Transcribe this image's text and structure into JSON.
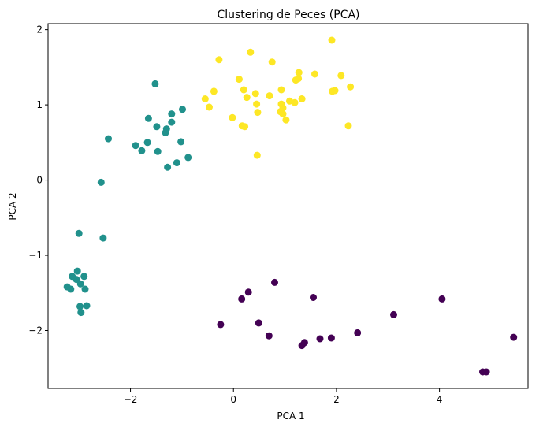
{
  "chart_data": {
    "type": "scatter",
    "title": "Clustering de Peces (PCA)",
    "xlabel": "PCA 1",
    "ylabel": "PCA 2",
    "xlim": [
      -3.6,
      5.72
    ],
    "ylim": [
      -2.77,
      2.08
    ],
    "xticks": [
      -2,
      0,
      2,
      4
    ],
    "xtick_labels": [
      "−2",
      "0",
      "2",
      "4"
    ],
    "yticks": [
      -2,
      -1,
      0,
      1,
      2
    ],
    "ytick_labels": [
      "−2",
      "−1",
      "0",
      "1",
      "2"
    ],
    "grid": false,
    "series": [
      {
        "color": "#440154",
        "points": [
          [
            -0.25,
            -1.92
          ],
          [
            0.16,
            -1.58
          ],
          [
            0.29,
            -1.49
          ],
          [
            0.8,
            -1.36
          ],
          [
            0.49,
            -1.9
          ],
          [
            0.69,
            -2.07
          ],
          [
            1.33,
            -2.2
          ],
          [
            1.38,
            -2.16
          ],
          [
            1.55,
            -1.56
          ],
          [
            1.68,
            -2.11
          ],
          [
            1.9,
            -2.1
          ],
          [
            2.41,
            -2.03
          ],
          [
            3.11,
            -1.79
          ],
          [
            4.05,
            -1.58
          ],
          [
            4.84,
            -2.55
          ],
          [
            4.91,
            -2.55
          ],
          [
            5.44,
            -2.09
          ]
        ]
      },
      {
        "color": "#21918c",
        "points": [
          [
            -1.52,
            1.28
          ],
          [
            -1.65,
            0.82
          ],
          [
            -1.49,
            0.71
          ],
          [
            -1.2,
            0.77
          ],
          [
            -1.2,
            0.88
          ],
          [
            -0.99,
            0.94
          ],
          [
            -1.32,
            0.63
          ],
          [
            -1.3,
            0.68
          ],
          [
            -1.9,
            0.46
          ],
          [
            -1.78,
            0.39
          ],
          [
            -1.67,
            0.5
          ],
          [
            -1.47,
            0.38
          ],
          [
            -1.02,
            0.51
          ],
          [
            -0.88,
            0.3
          ],
          [
            -1.28,
            0.17
          ],
          [
            -1.1,
            0.23
          ],
          [
            -2.43,
            0.55
          ],
          [
            -2.57,
            -0.03
          ],
          [
            -3.0,
            -0.71
          ],
          [
            -2.53,
            -0.77
          ],
          [
            -3.23,
            -1.42
          ],
          [
            -3.16,
            -1.45
          ],
          [
            -3.13,
            -1.28
          ],
          [
            -3.03,
            -1.21
          ],
          [
            -3.05,
            -1.32
          ],
          [
            -2.97,
            -1.38
          ],
          [
            -2.9,
            -1.28
          ],
          [
            -2.88,
            -1.45
          ],
          [
            -2.98,
            -1.68
          ],
          [
            -2.85,
            -1.67
          ],
          [
            -2.96,
            -1.76
          ]
        ]
      },
      {
        "color": "#fde725",
        "points": [
          [
            -0.28,
            1.6
          ],
          [
            0.33,
            1.7
          ],
          [
            0.75,
            1.57
          ],
          [
            1.91,
            1.86
          ],
          [
            0.11,
            1.34
          ],
          [
            1.27,
            1.43
          ],
          [
            1.58,
            1.41
          ],
          [
            2.09,
            1.39
          ],
          [
            1.21,
            1.33
          ],
          [
            1.26,
            1.35
          ],
          [
            0.2,
            1.2
          ],
          [
            0.26,
            1.1
          ],
          [
            0.43,
            1.15
          ],
          [
            0.7,
            1.12
          ],
          [
            0.93,
            1.2
          ],
          [
            1.09,
            1.05
          ],
          [
            1.19,
            1.03
          ],
          [
            1.33,
            1.08
          ],
          [
            1.92,
            1.18
          ],
          [
            1.97,
            1.19
          ],
          [
            2.27,
            1.24
          ],
          [
            -0.38,
            1.18
          ],
          [
            -0.55,
            1.08
          ],
          [
            -0.47,
            0.97
          ],
          [
            0.45,
            1.01
          ],
          [
            0.93,
            1.01
          ],
          [
            0.96,
            0.96
          ],
          [
            0.91,
            0.91
          ],
          [
            0.96,
            0.88
          ],
          [
            1.02,
            0.8
          ],
          [
            0.47,
            0.9
          ],
          [
            -0.02,
            0.83
          ],
          [
            0.17,
            0.72
          ],
          [
            0.22,
            0.71
          ],
          [
            2.23,
            0.72
          ],
          [
            0.46,
            0.33
          ]
        ]
      }
    ]
  }
}
